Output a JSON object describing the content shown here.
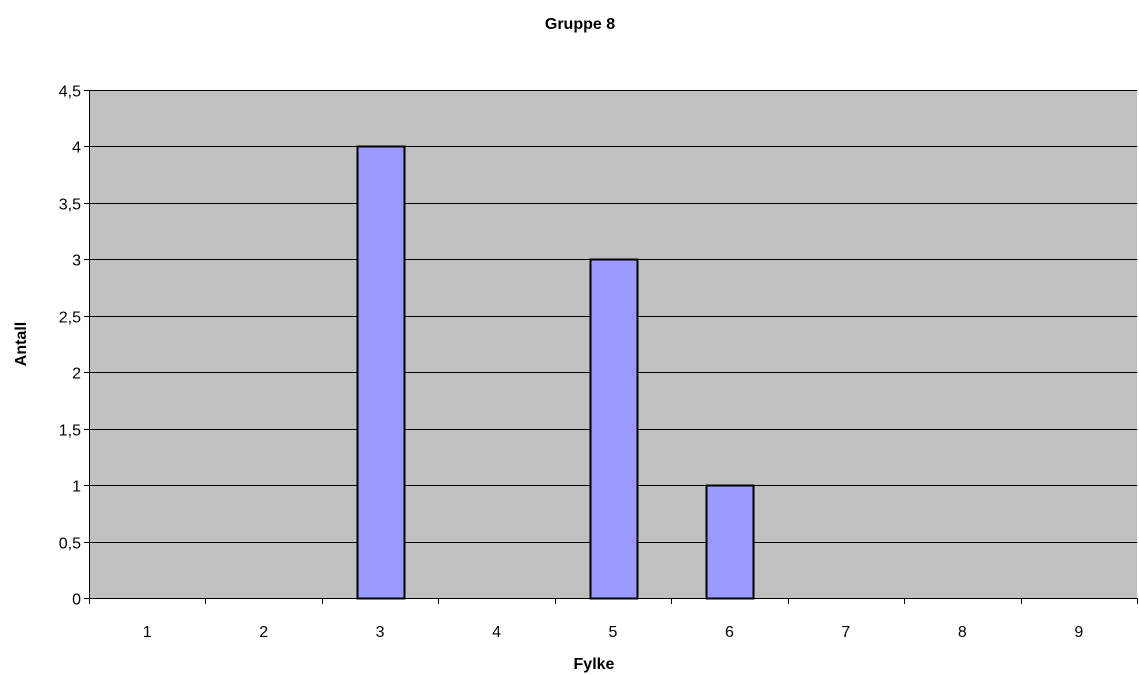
{
  "chart_data": {
    "type": "bar",
    "title": "Gruppe 8",
    "xlabel": "Fylke",
    "ylabel": "Antall",
    "categories": [
      "1",
      "2",
      "3",
      "4",
      "5",
      "6",
      "7",
      "8",
      "9"
    ],
    "values": [
      0,
      0,
      4,
      0,
      3,
      1,
      0,
      0,
      0
    ],
    "ylim": [
      0,
      4.5
    ],
    "yticks": [
      "0",
      "0,5",
      "1",
      "1,5",
      "2",
      "2,5",
      "3",
      "3,5",
      "4",
      "4,5"
    ],
    "ytick_values": [
      0,
      0.5,
      1,
      1.5,
      2,
      2.5,
      3,
      3.5,
      4,
      4.5
    ],
    "grid": true,
    "legend": "none",
    "colors": {
      "plot_background": "#c0c0c0",
      "bar_fill": "#9999ff",
      "bar_stroke": "#000000",
      "gridline": "#000000"
    }
  }
}
